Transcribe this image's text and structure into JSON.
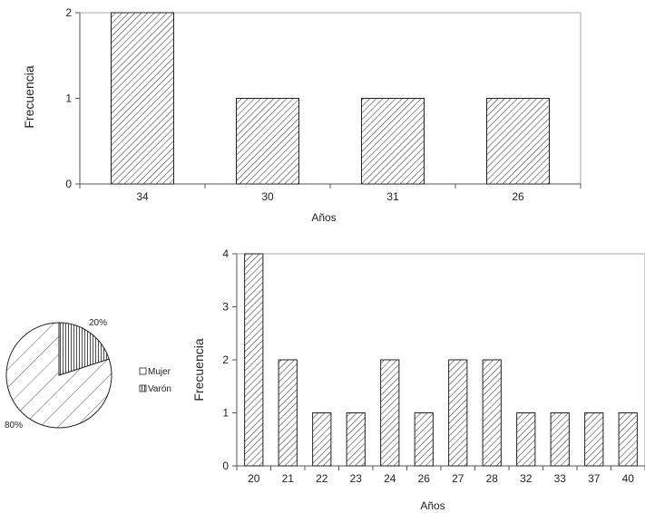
{
  "chart_data": [
    {
      "type": "bar",
      "categories": [
        "34",
        "30",
        "31",
        "26"
      ],
      "values": [
        2,
        1,
        1,
        1
      ],
      "xlabel": "Años",
      "ylabel": "Frecuencia",
      "yticks": [
        "0",
        "1",
        "2"
      ],
      "ylim": [
        0,
        2
      ]
    },
    {
      "type": "pie",
      "labels": [
        "Mujer",
        "Varón"
      ],
      "values": [
        80,
        20
      ],
      "value_labels": [
        "80%",
        "20%"
      ],
      "legend": "right"
    },
    {
      "type": "bar",
      "categories": [
        "20",
        "21",
        "22",
        "23",
        "24",
        "26",
        "27",
        "28",
        "32",
        "33",
        "37",
        "40"
      ],
      "values": [
        4,
        2,
        1,
        1,
        2,
        1,
        2,
        2,
        1,
        1,
        1,
        1
      ],
      "xlabel": "Años",
      "ylabel": "Frecuencia",
      "yticks": [
        "0",
        "1",
        "2",
        "3",
        "4"
      ],
      "ylim": [
        0,
        4
      ]
    }
  ],
  "colors": {
    "bar_fill": "#ffffff",
    "bar_stroke": "#222222",
    "axis": "#888888"
  }
}
